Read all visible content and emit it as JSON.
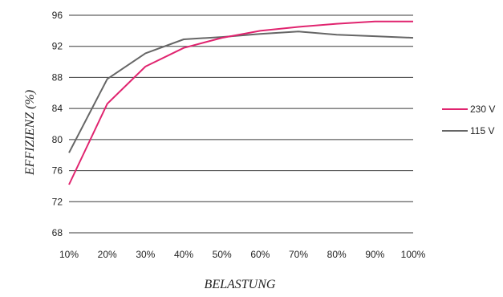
{
  "chart_data": {
    "type": "line",
    "xlabel": "BELASTUNG",
    "ylabel": "EFFIZIENZ (%)",
    "categories": [
      "10%",
      "20%",
      "30%",
      "40%",
      "50%",
      "60%",
      "70%",
      "80%",
      "90%",
      "100%"
    ],
    "yticks": [
      68,
      72,
      76,
      80,
      84,
      88,
      92,
      96
    ],
    "ylim": [
      68,
      96
    ],
    "grid": "horizontal",
    "legend_position": "right",
    "series": [
      {
        "name": "230 V",
        "color": "#e0246f",
        "values": [
          74.2,
          84.6,
          89.4,
          91.8,
          93.1,
          94.0,
          94.5,
          94.9,
          95.2,
          95.2
        ]
      },
      {
        "name": "115 V",
        "color": "#666666",
        "values": [
          78.3,
          87.8,
          91.1,
          92.9,
          93.2,
          93.6,
          93.9,
          93.5,
          93.3,
          93.1
        ]
      }
    ]
  }
}
